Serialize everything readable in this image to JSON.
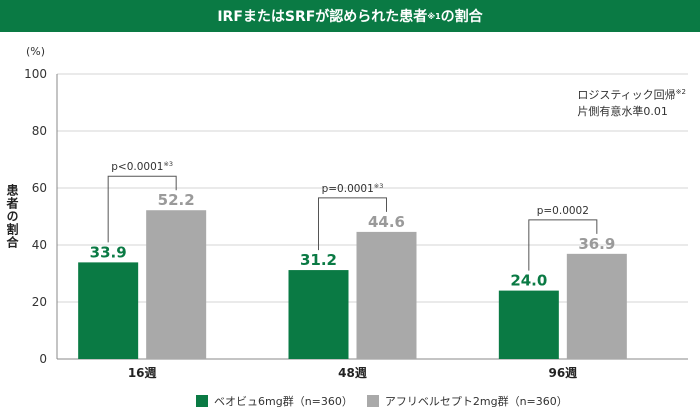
{
  "header": {
    "title_main": "IRFまたはSRFが認められた患者",
    "title_sup": "※1",
    "title_tail": "の割合"
  },
  "note": {
    "line1_main": "ロジスティック回帰",
    "line1_sup": "※2",
    "line2": "片側有意水準0.01"
  },
  "colors": {
    "series1": "#0a7a44",
    "series2": "#a9a9a9",
    "header_bg": "#0a7a44"
  },
  "chart_data": {
    "type": "bar",
    "ylabel": "患者の割合",
    "yunit": "(%)",
    "ylim": [
      0,
      100
    ],
    "yticks": [
      "0",
      "20",
      "40",
      "60",
      "80",
      "100"
    ],
    "categories": [
      "16週",
      "48週",
      "96週"
    ],
    "series": [
      {
        "name": "ベオビュ6mg群（n=360）",
        "values": [
          33.9,
          31.2,
          24.0
        ],
        "labels": [
          "33.9",
          "31.2",
          "24.0"
        ]
      },
      {
        "name": "アフリベルセプト2mg群（n=360）",
        "values": [
          52.2,
          44.6,
          36.9
        ],
        "labels": [
          "52.2",
          "44.6",
          "36.9"
        ]
      }
    ],
    "annotations": [
      {
        "text": "p<0.0001",
        "sup": "※3"
      },
      {
        "text": "p=0.0001",
        "sup": "※3"
      },
      {
        "text": "p=0.0002",
        "sup": ""
      }
    ],
    "grid": true,
    "legend": "bottom"
  }
}
